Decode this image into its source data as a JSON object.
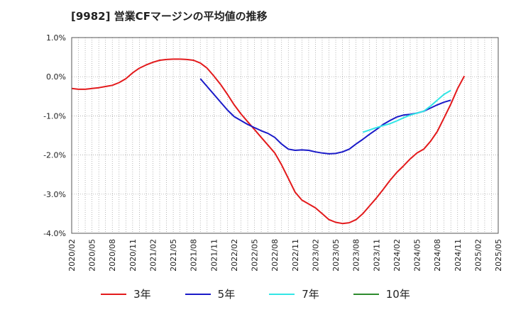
{
  "chart_data": {
    "type": "line",
    "title": "[9982]  営業CFマージンの平均値の推移",
    "xlabel": "",
    "ylabel": "",
    "ylim": [
      -4.0,
      1.0
    ],
    "yticks": [
      "1.0%",
      "0.0%",
      "-1.0%",
      "-2.0%",
      "-3.0%",
      "-4.0%"
    ],
    "ytick_values": [
      1.0,
      0.0,
      -1.0,
      -2.0,
      -3.0,
      -4.0
    ],
    "xticks": [
      "2020/02",
      "2020/05",
      "2020/08",
      "2020/11",
      "2021/02",
      "2021/05",
      "2021/08",
      "2021/11",
      "2022/02",
      "2022/05",
      "2022/08",
      "2022/11",
      "2023/02",
      "2023/05",
      "2023/08",
      "2023/11",
      "2024/02",
      "2024/05",
      "2024/08",
      "2024/11",
      "2025/02",
      "2025/05"
    ],
    "grid": true,
    "legend_position": "bottom",
    "series": [
      {
        "name": "3年",
        "color": "#e31a1c",
        "points": [
          [
            "2020/02",
            -0.3
          ],
          [
            "2020/03",
            -0.32
          ],
          [
            "2020/04",
            -0.32
          ],
          [
            "2020/05",
            -0.3
          ],
          [
            "2020/06",
            -0.28
          ],
          [
            "2020/07",
            -0.25
          ],
          [
            "2020/08",
            -0.22
          ],
          [
            "2020/09",
            -0.15
          ],
          [
            "2020/10",
            -0.05
          ],
          [
            "2020/11",
            0.1
          ],
          [
            "2020/12",
            0.22
          ],
          [
            "2021/01",
            0.3
          ],
          [
            "2021/02",
            0.37
          ],
          [
            "2021/03",
            0.42
          ],
          [
            "2021/04",
            0.44
          ],
          [
            "2021/05",
            0.45
          ],
          [
            "2021/06",
            0.45
          ],
          [
            "2021/07",
            0.44
          ],
          [
            "2021/08",
            0.42
          ],
          [
            "2021/09",
            0.35
          ],
          [
            "2021/10",
            0.22
          ],
          [
            "2021/11",
            0.02
          ],
          [
            "2021/12",
            -0.2
          ],
          [
            "2022/01",
            -0.45
          ],
          [
            "2022/02",
            -0.72
          ],
          [
            "2022/03",
            -0.95
          ],
          [
            "2022/04",
            -1.15
          ],
          [
            "2022/05",
            -1.35
          ],
          [
            "2022/06",
            -1.55
          ],
          [
            "2022/07",
            -1.75
          ],
          [
            "2022/08",
            -1.95
          ],
          [
            "2022/09",
            -2.25
          ],
          [
            "2022/10",
            -2.6
          ],
          [
            "2022/11",
            -2.95
          ],
          [
            "2022/12",
            -3.15
          ],
          [
            "2023/01",
            -3.25
          ],
          [
            "2023/02",
            -3.35
          ],
          [
            "2023/03",
            -3.5
          ],
          [
            "2023/04",
            -3.65
          ],
          [
            "2023/05",
            -3.72
          ],
          [
            "2023/06",
            -3.75
          ],
          [
            "2023/07",
            -3.73
          ],
          [
            "2023/08",
            -3.65
          ],
          [
            "2023/09",
            -3.5
          ],
          [
            "2023/10",
            -3.3
          ],
          [
            "2023/11",
            -3.1
          ],
          [
            "2023/12",
            -2.88
          ],
          [
            "2024/01",
            -2.65
          ],
          [
            "2024/02",
            -2.45
          ],
          [
            "2024/03",
            -2.28
          ],
          [
            "2024/04",
            -2.1
          ],
          [
            "2024/05",
            -1.95
          ],
          [
            "2024/06",
            -1.85
          ],
          [
            "2024/07",
            -1.65
          ],
          [
            "2024/08",
            -1.4
          ],
          [
            "2024/09",
            -1.05
          ],
          [
            "2024/10",
            -0.7
          ],
          [
            "2024/11",
            -0.3
          ],
          [
            "2024/12",
            0.02
          ]
        ]
      },
      {
        "name": "5年",
        "color": "#1a1ac8",
        "points": [
          [
            "2021/09",
            -0.05
          ],
          [
            "2021/10",
            -0.25
          ],
          [
            "2021/11",
            -0.45
          ],
          [
            "2021/12",
            -0.65
          ],
          [
            "2022/01",
            -0.85
          ],
          [
            "2022/02",
            -1.02
          ],
          [
            "2022/03",
            -1.12
          ],
          [
            "2022/04",
            -1.22
          ],
          [
            "2022/05",
            -1.3
          ],
          [
            "2022/06",
            -1.38
          ],
          [
            "2022/07",
            -1.45
          ],
          [
            "2022/08",
            -1.55
          ],
          [
            "2022/09",
            -1.72
          ],
          [
            "2022/10",
            -1.85
          ],
          [
            "2022/11",
            -1.88
          ],
          [
            "2022/12",
            -1.87
          ],
          [
            "2023/01",
            -1.88
          ],
          [
            "2023/02",
            -1.92
          ],
          [
            "2023/03",
            -1.95
          ],
          [
            "2023/04",
            -1.97
          ],
          [
            "2023/05",
            -1.96
          ],
          [
            "2023/06",
            -1.92
          ],
          [
            "2023/07",
            -1.85
          ],
          [
            "2023/08",
            -1.72
          ],
          [
            "2023/09",
            -1.6
          ],
          [
            "2023/10",
            -1.47
          ],
          [
            "2023/11",
            -1.35
          ],
          [
            "2023/12",
            -1.22
          ],
          [
            "2024/01",
            -1.12
          ],
          [
            "2024/02",
            -1.03
          ],
          [
            "2024/03",
            -0.98
          ],
          [
            "2024/04",
            -0.96
          ],
          [
            "2024/05",
            -0.93
          ],
          [
            "2024/06",
            -0.88
          ],
          [
            "2024/07",
            -0.8
          ],
          [
            "2024/08",
            -0.72
          ],
          [
            "2024/09",
            -0.65
          ],
          [
            "2024/10",
            -0.6
          ]
        ]
      },
      {
        "name": "7年",
        "color": "#33e6e6",
        "points": [
          [
            "2023/09",
            -1.42
          ],
          [
            "2023/10",
            -1.36
          ],
          [
            "2023/11",
            -1.3
          ],
          [
            "2023/12",
            -1.25
          ],
          [
            "2024/01",
            -1.2
          ],
          [
            "2024/02",
            -1.13
          ],
          [
            "2024/03",
            -1.05
          ],
          [
            "2024/04",
            -0.98
          ],
          [
            "2024/05",
            -0.93
          ],
          [
            "2024/06",
            -0.88
          ],
          [
            "2024/07",
            -0.75
          ],
          [
            "2024/08",
            -0.6
          ],
          [
            "2024/09",
            -0.45
          ],
          [
            "2024/10",
            -0.35
          ]
        ]
      },
      {
        "name": "10年",
        "color": "#2e8b2e",
        "points": []
      }
    ]
  }
}
